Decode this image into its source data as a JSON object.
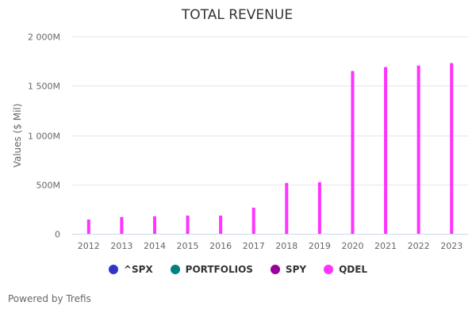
{
  "chart_data": {
    "type": "bar",
    "title": "TOTAL REVENUE",
    "xlabel": "",
    "ylabel": "Values ($ Mil)",
    "ylim": [
      0,
      2000
    ],
    "yticks": [
      0,
      500,
      1000,
      1500,
      2000
    ],
    "ytick_labels": [
      "0",
      "500M",
      "1 000M",
      "1 500M",
      "2 000M"
    ],
    "grid": true,
    "categories": [
      "2012",
      "2013",
      "2014",
      "2015",
      "2016",
      "2017",
      "2018",
      "2019",
      "2020",
      "2021",
      "2022",
      "2023"
    ],
    "series": [
      {
        "name": "^SPX",
        "color": "#3333cc",
        "values": []
      },
      {
        "name": "PORTFOLIOS",
        "color": "#008080",
        "values": []
      },
      {
        "name": "SPY",
        "color": "#990099",
        "values": []
      },
      {
        "name": "QDEL",
        "color": "#ff33ff",
        "values": [
          145,
          170,
          177,
          185,
          185,
          265,
          515,
          523,
          1650,
          1690,
          1705,
          1730
        ]
      }
    ],
    "legend_position": "bottom"
  },
  "legend": [
    {
      "label": "^SPX",
      "color": "#3333cc"
    },
    {
      "label": "PORTFOLIOS",
      "color": "#008080"
    },
    {
      "label": "SPY",
      "color": "#990099"
    },
    {
      "label": "QDEL",
      "color": "#ff33ff"
    }
  ],
  "footer": "Powered by Trefis"
}
